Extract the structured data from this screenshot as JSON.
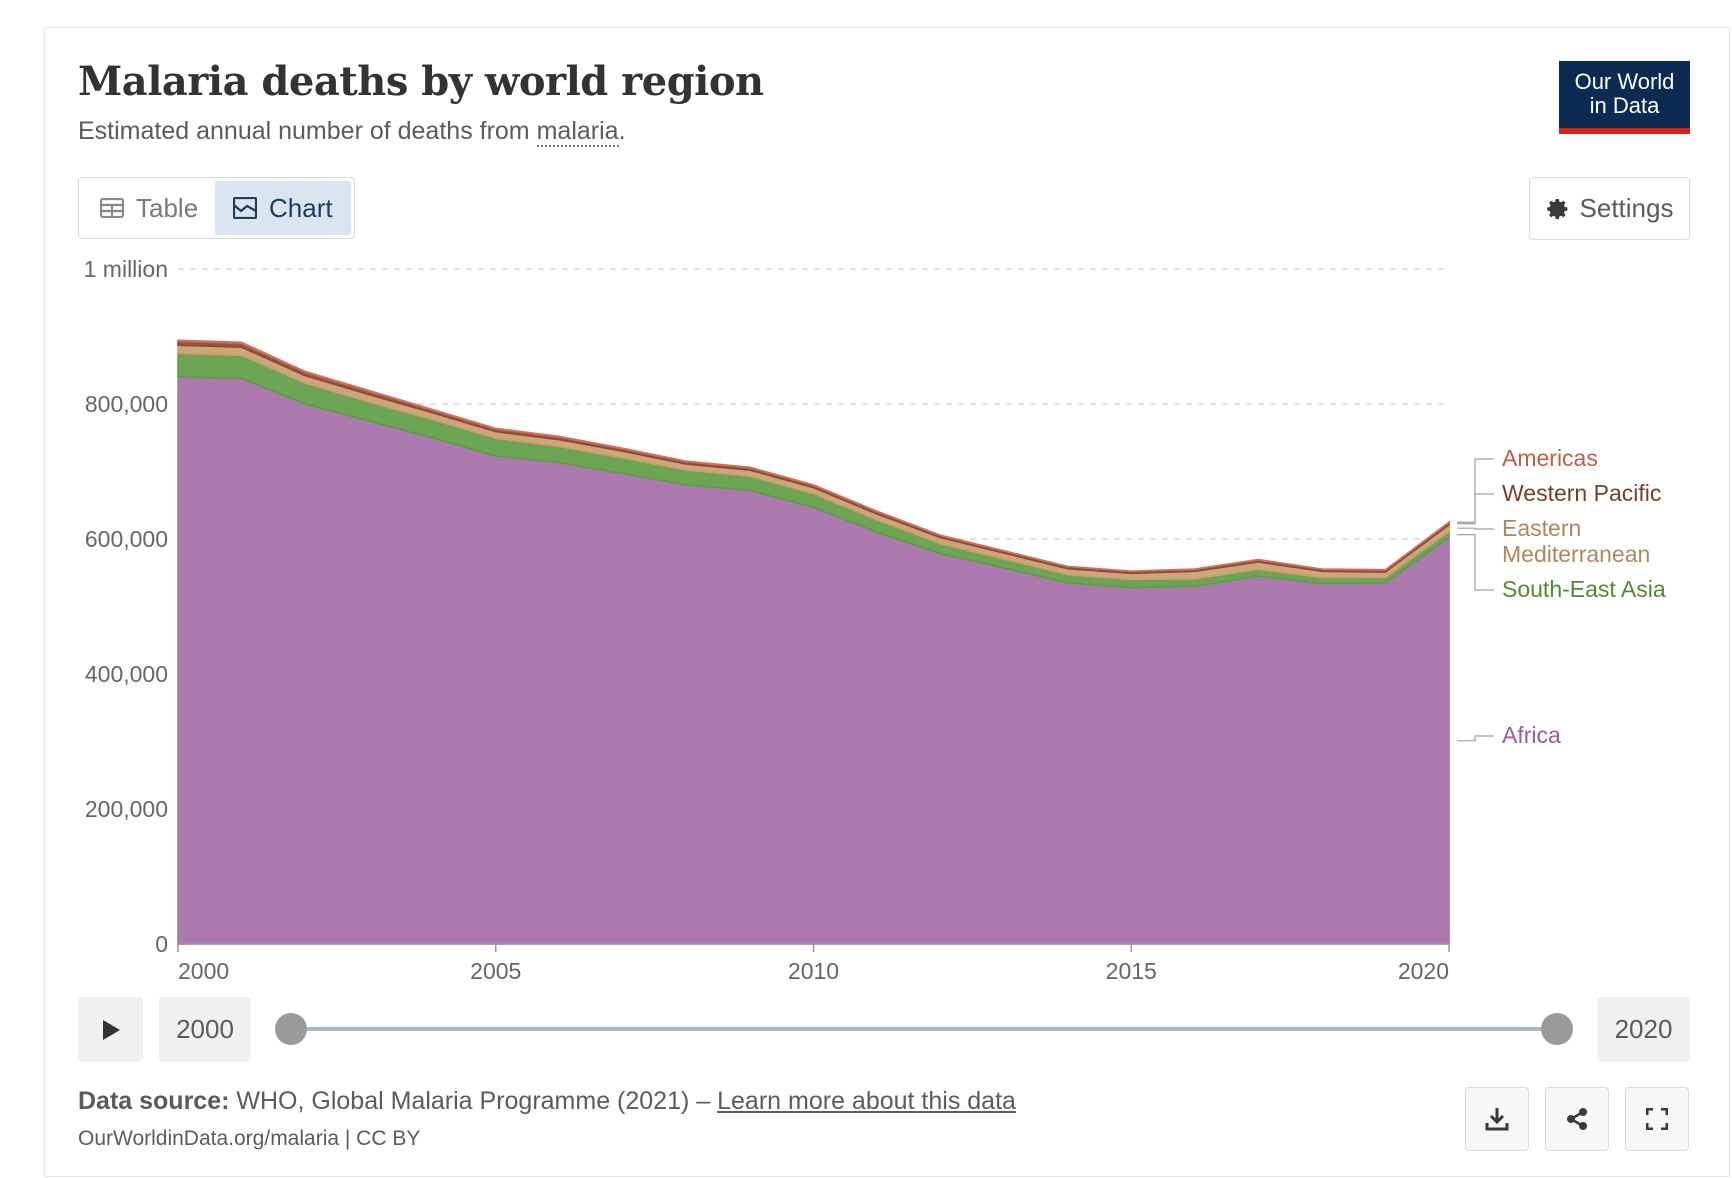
{
  "header": {
    "title": "Malaria deaths by world region",
    "subtitle_prefix": "Estimated annual number of deaths from ",
    "subtitle_link": "malaria",
    "subtitle_suffix": ".",
    "logo_line1": "Our World",
    "logo_line2": "in Data"
  },
  "tabs": {
    "table_label": "Table",
    "chart_label": "Chart",
    "active": "Chart"
  },
  "settings_label": "Settings",
  "timeline": {
    "start_year": "2000",
    "end_year": "2020"
  },
  "footer": {
    "source_label": "Data source:",
    "source_text": " WHO, Global Malaria Programme (2021) – ",
    "source_link": "Learn more about this data",
    "url": "OurWorldinData.org/malaria | CC BY"
  },
  "icons": {
    "table": "table-icon",
    "chart": "chart-icon",
    "settings": "gear-icon",
    "play": "play-icon",
    "download": "download-icon",
    "share": "share-icon",
    "fullscreen": "fullscreen-icon"
  },
  "chart_data": {
    "type": "area",
    "stacked": true,
    "title": "Malaria deaths by world region",
    "x": [
      2000,
      2001,
      2002,
      2003,
      2004,
      2005,
      2006,
      2007,
      2008,
      2009,
      2010,
      2011,
      2012,
      2013,
      2014,
      2015,
      2016,
      2017,
      2018,
      2019,
      2020
    ],
    "xticks": [
      "2000",
      "2005",
      "2010",
      "2015",
      "2020"
    ],
    "yticks": [
      {
        "value": 0,
        "label": "0"
      },
      {
        "value": 200000,
        "label": "200,000"
      },
      {
        "value": 400000,
        "label": "400,000"
      },
      {
        "value": 600000,
        "label": "600,000"
      },
      {
        "value": 800000,
        "label": "800,000"
      },
      {
        "value": 1000000,
        "label": "1 million"
      }
    ],
    "ylim": [
      0,
      1000000
    ],
    "xlim": [
      2000,
      2020
    ],
    "grid": "horizontal dashed",
    "legend_position": "right (inline labels)",
    "series": [
      {
        "name": "Africa",
        "color": "#a56ea8",
        "values": [
          840000,
          838000,
          800000,
          775000,
          750000,
          723000,
          713000,
          697000,
          680000,
          672000,
          647000,
          610000,
          578000,
          557000,
          535000,
          528000,
          530000,
          545000,
          534000,
          535000,
          602000
        ]
      },
      {
        "name": "South-East Asia",
        "color": "#5e9c44",
        "values": [
          35000,
          34000,
          31000,
          28000,
          27000,
          26000,
          24000,
          23000,
          22000,
          21000,
          20000,
          18000,
          15000,
          13000,
          12000,
          12000,
          11000,
          10000,
          9000,
          8000,
          9000
        ]
      },
      {
        "name": "Eastern Mediterranean",
        "color": "#c89d72",
        "values": [
          12000,
          12000,
          11000,
          11000,
          10000,
          10000,
          10000,
          10000,
          9000,
          9000,
          9000,
          9000,
          9000,
          9000,
          9000,
          9000,
          11000,
          11000,
          9000,
          8000,
          10000
        ]
      },
      {
        "name": "Western Pacific",
        "color": "#8a4b2f",
        "values": [
          6000,
          6000,
          5000,
          5000,
          4000,
          4000,
          4000,
          3500,
          3500,
          3500,
          3500,
          3500,
          3000,
          3000,
          3000,
          3000,
          3000,
          3000,
          3000,
          3000,
          3500
        ]
      },
      {
        "name": "Americas",
        "color": "#d06d5e",
        "values": [
          1500,
          1500,
          1300,
          1200,
          1100,
          1000,
          1000,
          900,
          800,
          800,
          800,
          700,
          600,
          600,
          500,
          500,
          550,
          600,
          600,
          600,
          550
        ]
      }
    ],
    "labels": [
      {
        "series": "Americas",
        "text": [
          "Americas"
        ],
        "color": "#c6584a"
      },
      {
        "series": "Western Pacific",
        "text": [
          "Western Pacific"
        ],
        "color": "#7a3e25"
      },
      {
        "series": "Eastern Mediterranean",
        "text": [
          "Eastern",
          "Mediterranean"
        ],
        "color": "#b0875c"
      },
      {
        "series": "South-East Asia",
        "text": [
          "South-East Asia"
        ],
        "color": "#4f8b35"
      },
      {
        "series": "Africa",
        "text": [
          "Africa"
        ],
        "color": "#9a5a9e"
      }
    ]
  }
}
